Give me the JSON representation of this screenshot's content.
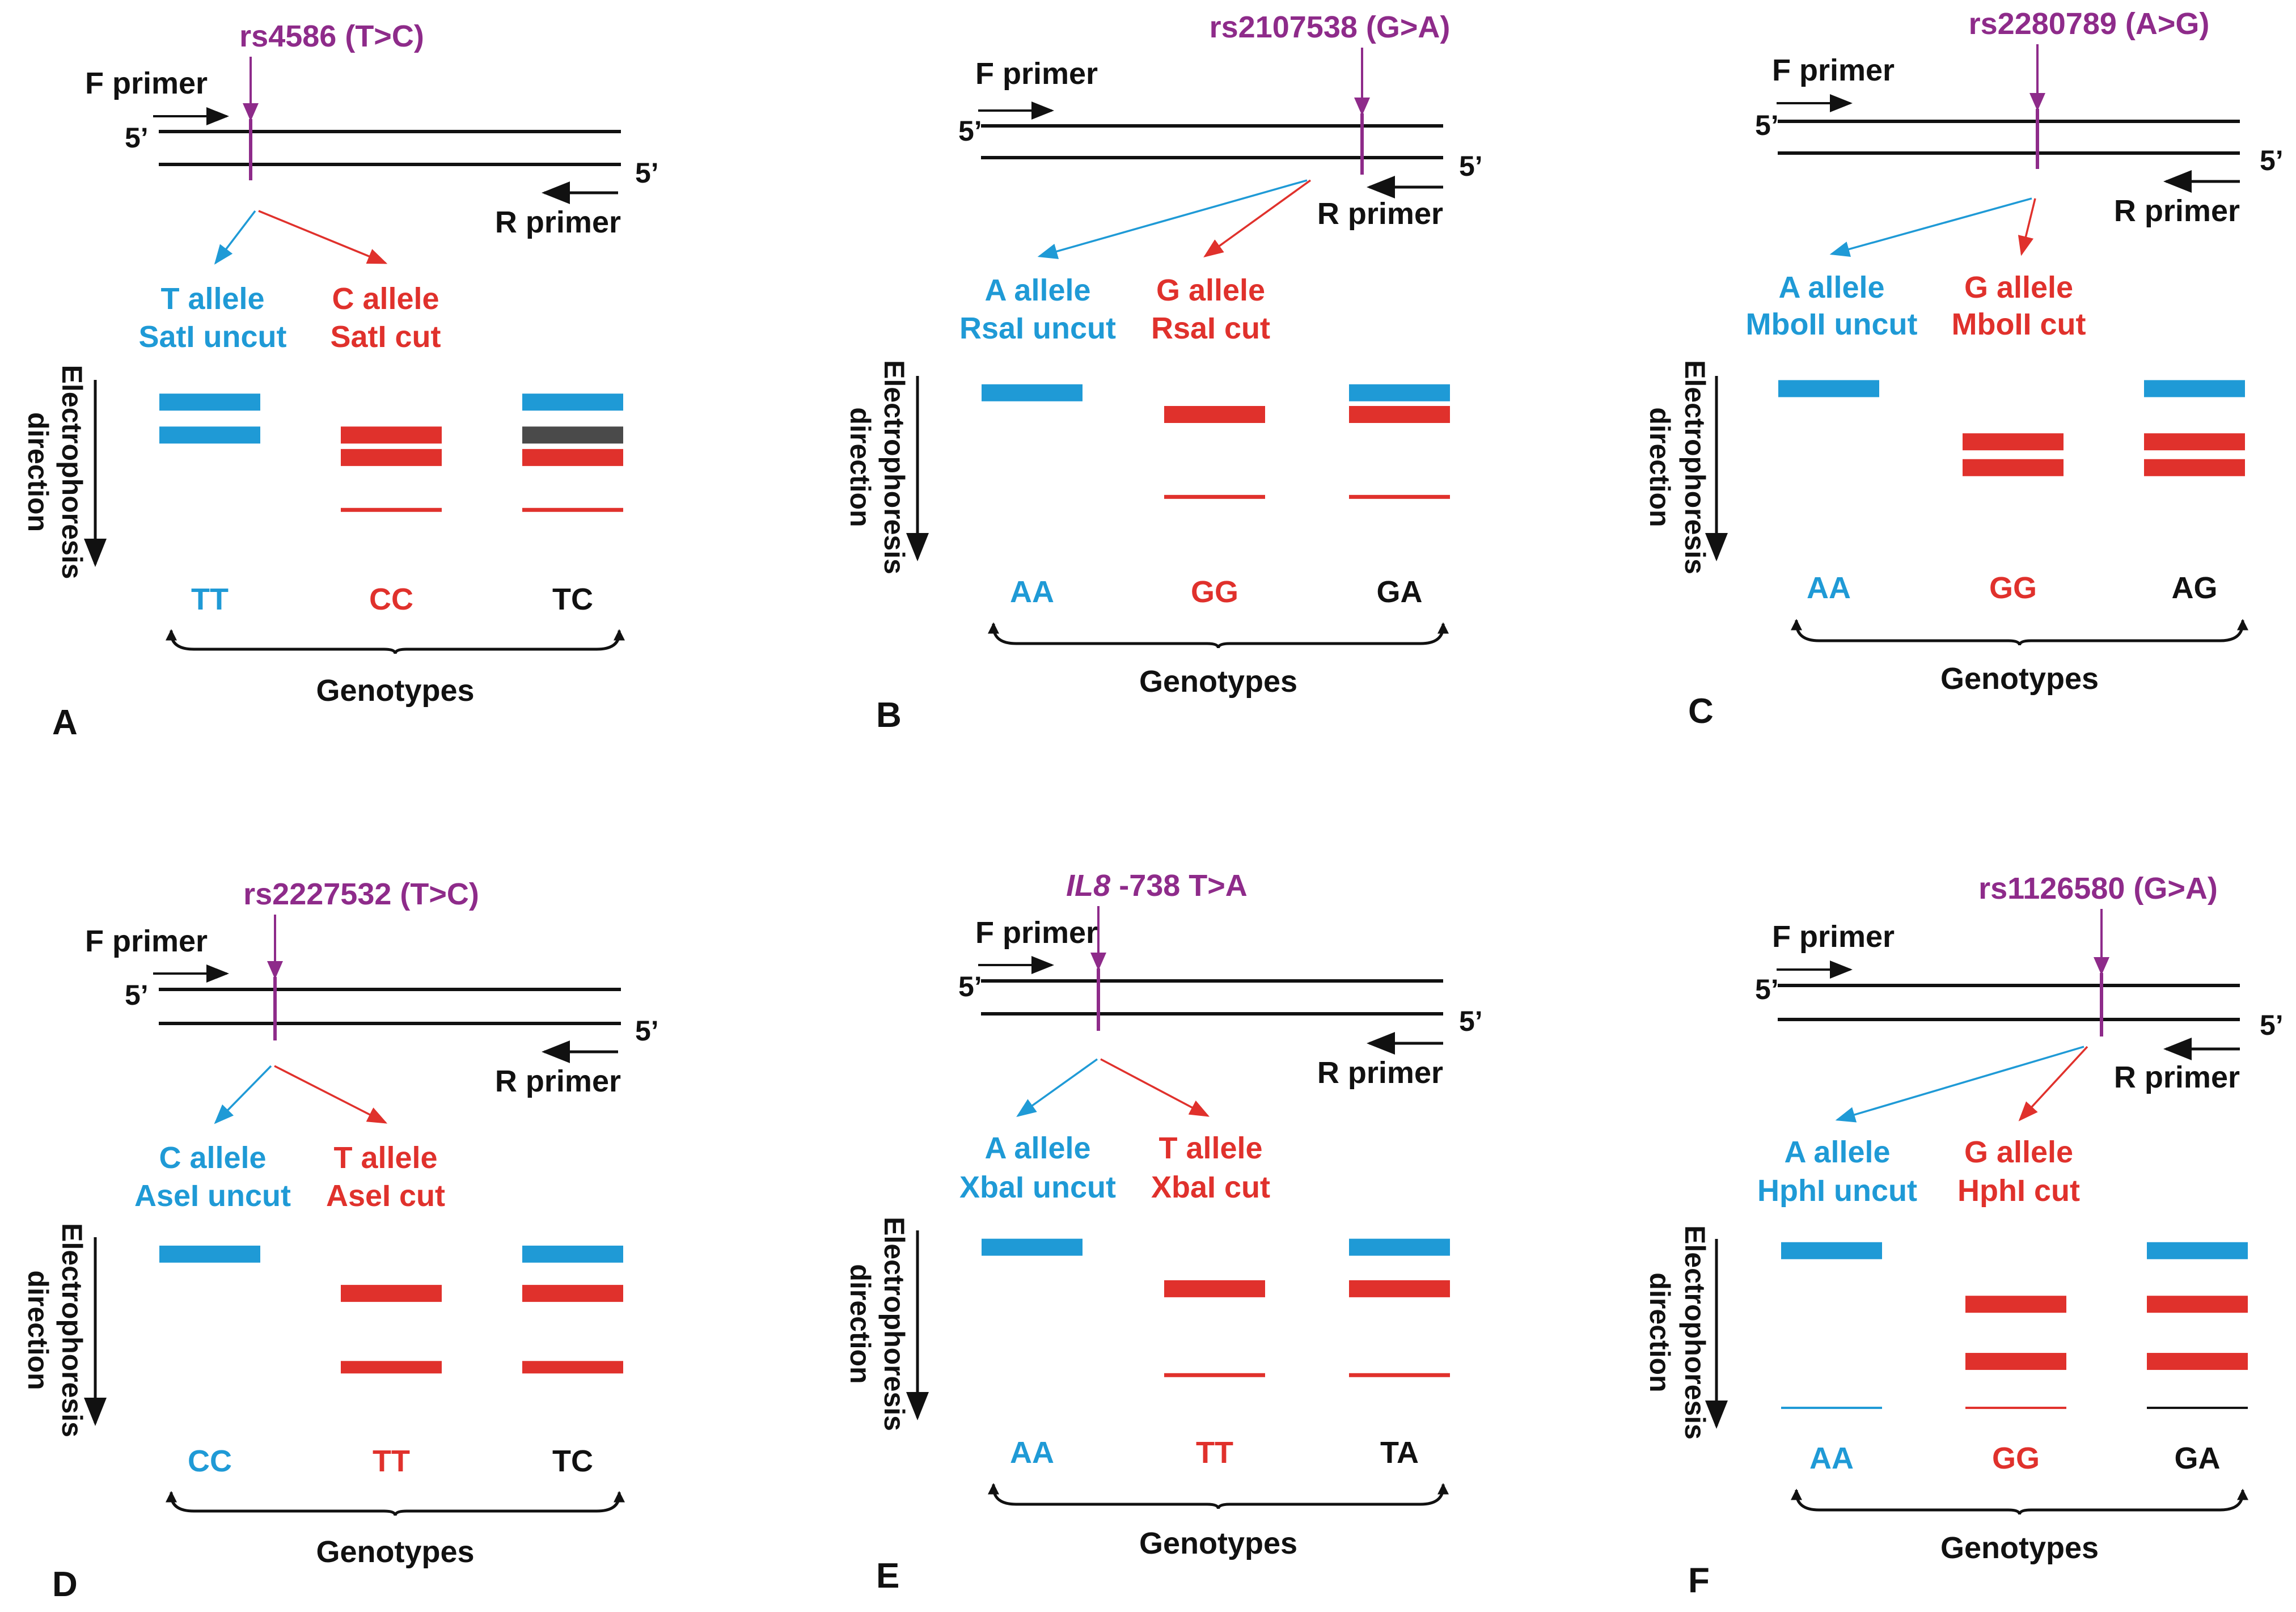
{
  "colors": {
    "snp": "#8e2b8a",
    "blue": "#1f9ad6",
    "red": "#e0312c",
    "dark": "#111111",
    "gray": "#4a4a4a"
  },
  "common": {
    "f_primer": "F primer",
    "r_primer": "R primer",
    "five_prime": "5’",
    "electrophoresis": "Electrophoresis",
    "direction": "direction",
    "genotypes": "Genotypes"
  },
  "panels": [
    {
      "letter": "A",
      "snp": "rs4586 (T>C)",
      "allele1": {
        "line1": "T allele",
        "line2": "SatI uncut"
      },
      "allele2": {
        "line1": "C allele",
        "line2": "SatI cut"
      },
      "genotypes": [
        "TT",
        "CC",
        "TC"
      ],
      "lanes": [
        [
          {
            "pos": 0.05,
            "w": "thick",
            "c": "blue"
          },
          {
            "pos": 0.27,
            "w": "thick",
            "c": "blue"
          }
        ],
        [
          {
            "pos": 0.27,
            "w": "thick",
            "c": "red"
          },
          {
            "pos": 0.42,
            "w": "thick",
            "c": "red"
          },
          {
            "pos": 0.77,
            "w": "thin",
            "c": "red"
          }
        ],
        [
          {
            "pos": 0.05,
            "w": "thick",
            "c": "blue"
          },
          {
            "pos": 0.27,
            "w": "thick",
            "c": "gray"
          },
          {
            "pos": 0.42,
            "w": "thick",
            "c": "red"
          },
          {
            "pos": 0.77,
            "w": "thin",
            "c": "red"
          }
        ]
      ]
    },
    {
      "letter": "B",
      "snp": "rs2107538 (G>A)",
      "allele1": {
        "line1": "A allele",
        "line2": "RsaI uncut"
      },
      "allele2": {
        "line1": "G allele",
        "line2": "RsaI cut"
      },
      "genotypes": [
        "AA",
        "GG",
        "GA"
      ],
      "lanes": [
        [
          {
            "pos": 0.05,
            "w": "thick",
            "c": "blue"
          }
        ],
        [
          {
            "pos": 0.2,
            "w": "thick",
            "c": "red"
          },
          {
            "pos": 0.77,
            "w": "thin",
            "c": "red"
          }
        ],
        [
          {
            "pos": 0.05,
            "w": "thick",
            "c": "blue"
          },
          {
            "pos": 0.2,
            "w": "thick",
            "c": "red"
          },
          {
            "pos": 0.77,
            "w": "thin",
            "c": "red"
          }
        ]
      ]
    },
    {
      "letter": "C",
      "snp": "rs2280789 (A>G)",
      "allele1": {
        "line1": "A allele",
        "line2": "MboII uncut"
      },
      "allele2": {
        "line1": "G allele",
        "line2": "MboII cut"
      },
      "genotypes": [
        "AA",
        "GG",
        "AG"
      ],
      "lanes": [
        [
          {
            "pos": 0.05,
            "w": "thick",
            "c": "blue"
          }
        ],
        [
          {
            "pos": 0.4,
            "w": "thick",
            "c": "red"
          },
          {
            "pos": 0.57,
            "w": "thick",
            "c": "red"
          }
        ],
        [
          {
            "pos": 0.05,
            "w": "thick",
            "c": "blue"
          },
          {
            "pos": 0.4,
            "w": "thick",
            "c": "red"
          },
          {
            "pos": 0.57,
            "w": "thick",
            "c": "red"
          }
        ]
      ]
    },
    {
      "letter": "D",
      "snp": "rs2227532 (T>C)",
      "allele1": {
        "line1": "C allele",
        "line2": "AseI uncut"
      },
      "allele2": {
        "line1": "T allele",
        "line2": "AseI cut"
      },
      "genotypes": [
        "CC",
        "TT",
        "TC"
      ],
      "lanes": [
        [
          {
            "pos": 0.05,
            "w": "thick",
            "c": "blue"
          }
        ],
        [
          {
            "pos": 0.3,
            "w": "thick",
            "c": "red"
          },
          {
            "pos": 0.77,
            "w": "thick-thin",
            "c": "red"
          }
        ],
        [
          {
            "pos": 0.05,
            "w": "thick",
            "c": "blue"
          },
          {
            "pos": 0.3,
            "w": "thick",
            "c": "red"
          },
          {
            "pos": 0.77,
            "w": "thick-thin",
            "c": "red"
          }
        ]
      ]
    },
    {
      "letter": "E",
      "snp_italic": "IL8",
      "snp": " -738 T>A",
      "allele1": {
        "line1": "A allele",
        "line2": "XbaI uncut"
      },
      "allele2": {
        "line1": "T allele",
        "line2": "XbaI cut"
      },
      "genotypes": [
        "AA",
        "TT",
        "TA"
      ],
      "lanes": [
        [
          {
            "pos": 0.05,
            "w": "thick",
            "c": "blue"
          }
        ],
        [
          {
            "pos": 0.3,
            "w": "thick",
            "c": "red"
          },
          {
            "pos": 0.82,
            "w": "thin",
            "c": "red"
          }
        ],
        [
          {
            "pos": 0.05,
            "w": "thick",
            "c": "blue"
          },
          {
            "pos": 0.3,
            "w": "thick",
            "c": "red"
          },
          {
            "pos": 0.82,
            "w": "thin",
            "c": "red"
          }
        ]
      ]
    },
    {
      "letter": "F",
      "snp": "rs1126580 (G>A)",
      "allele1": {
        "line1": "A allele",
        "line2": "HphI uncut"
      },
      "allele2": {
        "line1": "G allele",
        "line2": "HphI cut"
      },
      "genotypes": [
        "AA",
        "GG",
        "GA"
      ],
      "lanes": [
        [
          {
            "pos": 0.05,
            "w": "thick",
            "c": "blue"
          },
          {
            "pos": 0.93,
            "w": "hair",
            "c": "blue"
          }
        ],
        [
          {
            "pos": 0.35,
            "w": "thick",
            "c": "red"
          },
          {
            "pos": 0.67,
            "w": "thick",
            "c": "red"
          },
          {
            "pos": 0.93,
            "w": "hair",
            "c": "red"
          }
        ],
        [
          {
            "pos": 0.05,
            "w": "thick",
            "c": "blue"
          },
          {
            "pos": 0.35,
            "w": "thick",
            "c": "red"
          },
          {
            "pos": 0.67,
            "w": "thick",
            "c": "red"
          },
          {
            "pos": 0.93,
            "w": "hair",
            "c": "dark"
          }
        ]
      ]
    }
  ]
}
